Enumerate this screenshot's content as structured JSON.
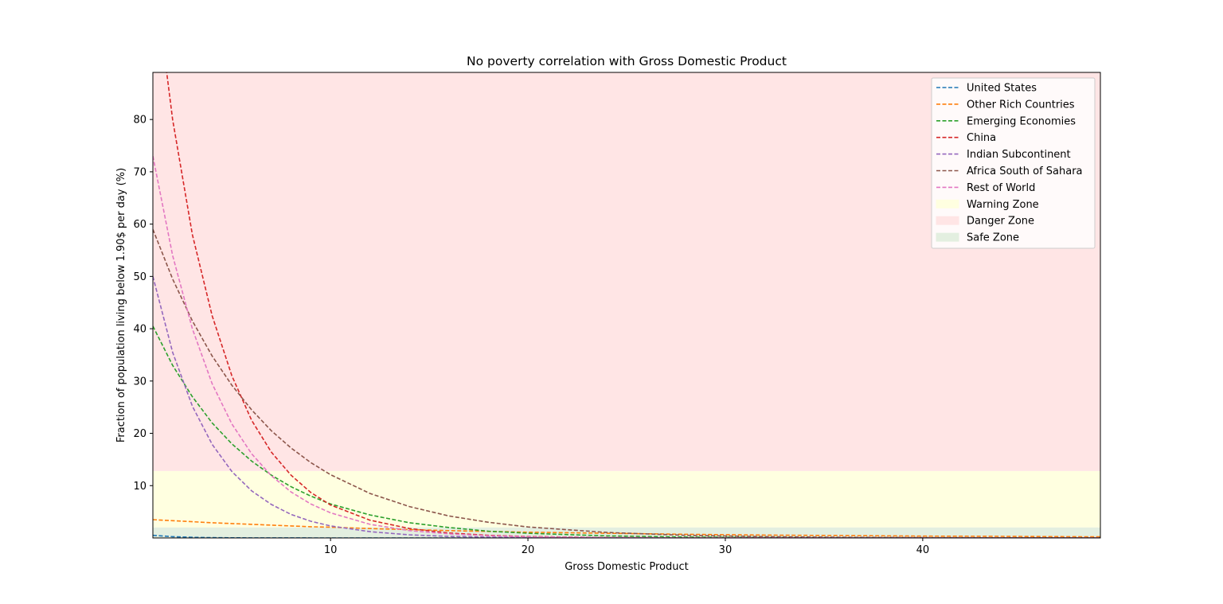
{
  "chart_data": {
    "type": "line",
    "title": "No poverty correlation with Gross Domestic Product",
    "xlabel": "Gross Domestic Product",
    "ylabel": "Fraction of population living below 1.90$ per day (%)",
    "xlim": [
      1,
      49
    ],
    "ylim": [
      0,
      89
    ],
    "xticks": [
      10,
      20,
      30,
      40
    ],
    "yticks": [
      10,
      20,
      30,
      40,
      50,
      60,
      70,
      80
    ],
    "grid": false,
    "legend_position": "top-right",
    "zones": [
      {
        "name": "Warning Zone",
        "y0": 2,
        "y1": 12.8,
        "color": "#ffffe0"
      },
      {
        "name": "Danger Zone",
        "y0": 12.8,
        "y1": 89,
        "color": "#ffe5e5"
      },
      {
        "name": "Safe Zone",
        "y0": 0,
        "y1": 2,
        "color": "#e3efe0"
      }
    ],
    "x": [
      1,
      2,
      3,
      4,
      5,
      6,
      7,
      8,
      9,
      10,
      12,
      14,
      16,
      18,
      20,
      24,
      28,
      32,
      36,
      40,
      44,
      49
    ],
    "series": [
      {
        "name": "United States",
        "color": "#1f77b4",
        "values": [
          0.5,
          0.25,
          0.12,
          0.06,
          0.03,
          0.02,
          0.01,
          0.01,
          0.0,
          0.0,
          0.0,
          0.0,
          0.0,
          0.0,
          0.0,
          0.0,
          0.0,
          0.0,
          0.0,
          0.0,
          0.0,
          0.0
        ]
      },
      {
        "name": "Other Rich Countries",
        "color": "#ff7f0e",
        "values": [
          3.5,
          3.3,
          3.1,
          2.9,
          2.75,
          2.6,
          2.45,
          2.3,
          2.15,
          2.05,
          1.8,
          1.6,
          1.4,
          1.25,
          1.1,
          0.9,
          0.7,
          0.55,
          0.45,
          0.35,
          0.3,
          0.22
        ]
      },
      {
        "name": "Emerging Economies",
        "color": "#2ca02c",
        "values": [
          40.5,
          33.0,
          27.0,
          22.0,
          18.0,
          14.7,
          12.0,
          9.8,
          8.0,
          6.5,
          4.4,
          2.9,
          2.0,
          1.3,
          0.9,
          0.4,
          0.17,
          0.08,
          0.03,
          0.01,
          0.01,
          0.0
        ]
      },
      {
        "name": "China",
        "color": "#d62728",
        "values": [
          110.0,
          80.0,
          58.0,
          42.5,
          31.0,
          22.5,
          16.4,
          12.0,
          8.7,
          6.3,
          3.4,
          1.8,
          0.95,
          0.5,
          0.27,
          0.08,
          0.02,
          0.01,
          0.0,
          0.0,
          0.0,
          0.0
        ]
      },
      {
        "name": "Indian Subcontinent",
        "color": "#9467bd",
        "values": [
          50.0,
          35.5,
          25.2,
          17.9,
          12.7,
          9.0,
          6.4,
          4.5,
          3.2,
          2.3,
          1.2,
          0.6,
          0.3,
          0.15,
          0.07,
          0.02,
          0.0,
          0.0,
          0.0,
          0.0,
          0.0,
          0.0
        ]
      },
      {
        "name": "Africa South of Sahara",
        "color": "#8c564b",
        "values": [
          59.0,
          49.5,
          41.5,
          34.8,
          29.2,
          24.5,
          20.5,
          17.2,
          14.4,
          12.1,
          8.5,
          6.0,
          4.2,
          3.0,
          2.1,
          1.05,
          0.5,
          0.25,
          0.12,
          0.06,
          0.03,
          0.01
        ]
      },
      {
        "name": "Rest of World",
        "color": "#e377c2",
        "values": [
          73.0,
          54.0,
          40.0,
          29.5,
          21.8,
          16.1,
          11.9,
          8.8,
          6.5,
          4.8,
          2.6,
          1.4,
          0.78,
          0.42,
          0.23,
          0.07,
          0.02,
          0.01,
          0.0,
          0.0,
          0.0,
          0.0
        ]
      }
    ]
  }
}
